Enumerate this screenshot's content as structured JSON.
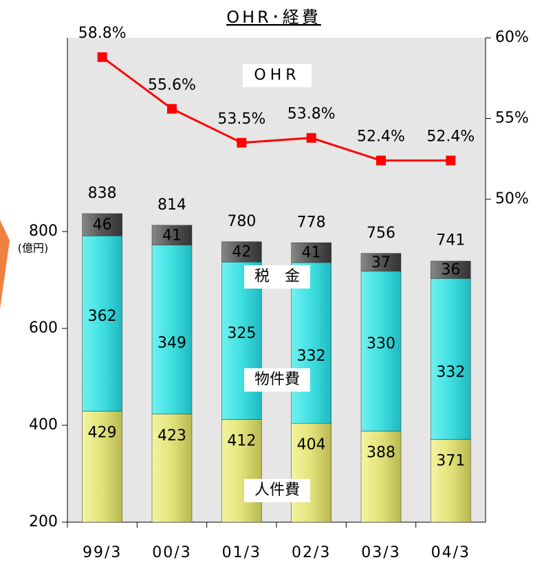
{
  "chart_data": {
    "type": "bar",
    "title": "OHR･経費",
    "y_unit_label": "(億円)",
    "categories": [
      "99/3",
      "00/3",
      "01/3",
      "02/3",
      "03/3",
      "04/3"
    ],
    "stacked": true,
    "series": [
      {
        "name": "人件費",
        "color": "#e2e27a",
        "values": [
          429,
          423,
          412,
          404,
          388,
          371
        ]
      },
      {
        "name": "物件費",
        "color": "#3fe0e0",
        "values": [
          362,
          349,
          325,
          332,
          330,
          332
        ]
      },
      {
        "name": "税　金",
        "color": "#555555",
        "values": [
          46,
          41,
          42,
          41,
          37,
          36
        ]
      },
      {
        "name": "OHR",
        "type": "line",
        "axis": "y2",
        "color": "#ff0000",
        "values": [
          58.8,
          55.6,
          53.5,
          53.8,
          52.4,
          52.4
        ],
        "value_labels": [
          "58.8%",
          "55.6%",
          "53.5%",
          "53.8%",
          "52.4%",
          "52.4%"
        ]
      }
    ],
    "totals": [
      838,
      814,
      780,
      778,
      756,
      741
    ],
    "ylim": [
      200,
      1200
    ],
    "yticks": [
      200,
      400,
      600,
      800
    ],
    "y2lim": [
      30,
      60
    ],
    "y2ticks": [
      {
        "value": 50,
        "label": "50%"
      },
      {
        "value": 55,
        "label": "55%"
      },
      {
        "value": 60,
        "label": "60%"
      }
    ]
  }
}
